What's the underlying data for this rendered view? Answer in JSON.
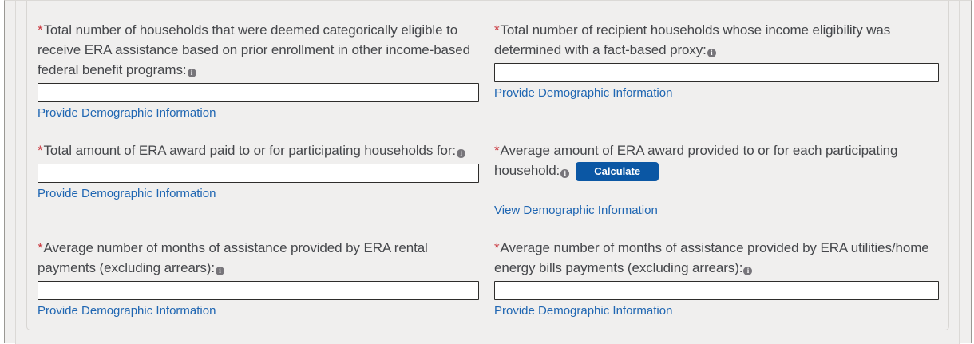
{
  "colors": {
    "page_bg": "#ffffff",
    "content_bg": "#f0efee",
    "outer_border": "#9a9894",
    "inner_border": "#dbd9d6",
    "panel_border": "#d8d6d3",
    "label": "#45474b",
    "required": "#c9353c",
    "link": "#1f66b2",
    "input_border": "#2e2d2b",
    "input_bg": "#ffffff",
    "button_bg": "#0b57a4",
    "button_text": "#ffffff",
    "info_icon_bg": "#77757a",
    "info_icon_glyph": "#ffffff"
  },
  "form": {
    "required_marker": "*",
    "info_glyph": "i",
    "fields": [
      {
        "label": "Total number of households that were deemed categorically eligible to\nreceive ERA assistance based on prior enrollment in other income-based\nfederal benefit programs:",
        "input_value": "",
        "link_label": "Provide Demographic Information"
      },
      {
        "label": "Total number of recipient households whose income eligibility was\ndetermined with a fact-based proxy:",
        "input_value": "",
        "link_label": "Provide Demographic Information"
      },
      {
        "label": "Total amount of ERA award paid to or for participating households for:",
        "input_value": "",
        "link_label": "Provide Demographic Information"
      },
      {
        "label": "Average amount of ERA award provided to or for each participating\nhousehold:",
        "action_label": "Calculate",
        "link_label": "View Demographic Information"
      },
      {
        "label": "Average number of months of assistance provided by ERA rental\npayments (excluding arrears):",
        "input_value": "",
        "link_label": "Provide Demographic Information"
      },
      {
        "label": "Average number of months of assistance provided by ERA utilities/home\nenergy bills payments (excluding arrears):",
        "input_value": "",
        "link_label": "Provide Demographic Information"
      }
    ]
  }
}
